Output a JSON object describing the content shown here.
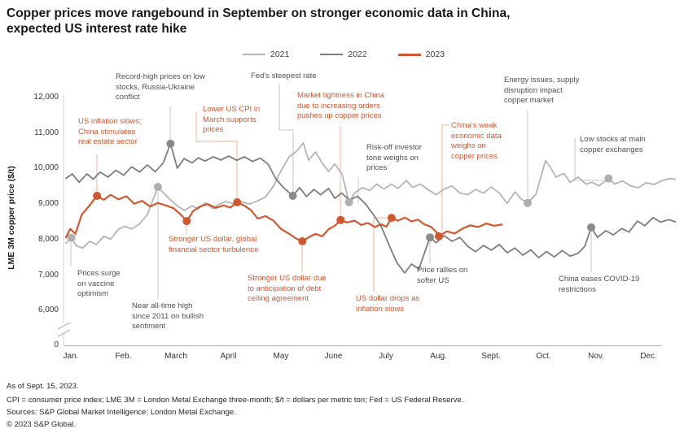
{
  "title": {
    "text": "Copper prices move rangebound in September on stronger economic data in China,\nexpected US interest rate hike"
  },
  "legend": [
    {
      "label": "2021",
      "color": "#b5b5b5"
    },
    {
      "label": "2022",
      "color": "#7d7d7d"
    },
    {
      "label": "2023",
      "color": "#d2572e"
    }
  ],
  "chart_data": {
    "type": "line",
    "title": "Copper prices move rangebound in September on stronger economic data in China, expected US interest rate hike",
    "ylabel": "LME 3M copper price ($/t)",
    "ylim": [
      6000,
      12000
    ],
    "y_axis_break_to_zero": true,
    "y_ticks": [
      "12,000",
      "11,000",
      "10,000",
      "9,000",
      "8,000",
      "7,000",
      "6,000",
      "0"
    ],
    "x_ticks": [
      "Jan.",
      "Feb.",
      "March",
      "April",
      "May",
      "June",
      "July",
      "Aug.",
      "Sept.",
      "Oct.",
      "Nov.",
      "Dec."
    ],
    "x_unit": "month index, 0 = start of January, 11 = start of December",
    "legend_position": "top",
    "grid": false,
    "series": [
      {
        "name": "2021",
        "color": "#b5b5b5",
        "width": 1.8,
        "points": [
          [
            0,
            7900
          ],
          [
            0.1,
            8050
          ],
          [
            0.2,
            7820
          ],
          [
            0.32,
            7760
          ],
          [
            0.45,
            7950
          ],
          [
            0.58,
            7860
          ],
          [
            0.72,
            8090
          ],
          [
            0.85,
            8010
          ],
          [
            1.0,
            8290
          ],
          [
            1.12,
            8370
          ],
          [
            1.25,
            8300
          ],
          [
            1.4,
            8440
          ],
          [
            1.55,
            8700
          ],
          [
            1.75,
            9480
          ],
          [
            1.88,
            9280
          ],
          [
            2.0,
            9100
          ],
          [
            2.12,
            8950
          ],
          [
            2.25,
            8820
          ],
          [
            2.4,
            8950
          ],
          [
            2.52,
            8860
          ],
          [
            2.65,
            9040
          ],
          [
            2.8,
            8870
          ],
          [
            2.92,
            9000
          ],
          [
            3.05,
            9070
          ],
          [
            3.2,
            9010
          ],
          [
            3.35,
            9060
          ],
          [
            3.5,
            9000
          ],
          [
            3.65,
            9090
          ],
          [
            3.8,
            9200
          ],
          [
            3.95,
            9500
          ],
          [
            4.1,
            9950
          ],
          [
            4.25,
            10330
          ],
          [
            4.4,
            10500
          ],
          [
            4.52,
            10720
          ],
          [
            4.62,
            10230
          ],
          [
            4.75,
            10470
          ],
          [
            4.88,
            10150
          ],
          [
            5.0,
            9920
          ],
          [
            5.12,
            10130
          ],
          [
            5.26,
            9830
          ],
          [
            5.39,
            9050
          ],
          [
            5.5,
            9320
          ],
          [
            5.65,
            9460
          ],
          [
            5.78,
            9380
          ],
          [
            5.92,
            9560
          ],
          [
            6.05,
            9420
          ],
          [
            6.2,
            9560
          ],
          [
            6.32,
            9440
          ],
          [
            6.48,
            9660
          ],
          [
            6.6,
            9470
          ],
          [
            6.75,
            9560
          ],
          [
            6.9,
            9400
          ],
          [
            7.05,
            9260
          ],
          [
            7.2,
            9420
          ],
          [
            7.35,
            9510
          ],
          [
            7.5,
            9310
          ],
          [
            7.65,
            9260
          ],
          [
            7.8,
            9410
          ],
          [
            7.95,
            9310
          ],
          [
            8.1,
            9480
          ],
          [
            8.25,
            9310
          ],
          [
            8.4,
            9020
          ],
          [
            8.55,
            9340
          ],
          [
            8.66,
            9150
          ],
          [
            8.79,
            9030
          ],
          [
            8.95,
            9280
          ],
          [
            9.13,
            10220
          ],
          [
            9.22,
            10040
          ],
          [
            9.33,
            9760
          ],
          [
            9.48,
            9860
          ],
          [
            9.6,
            9610
          ],
          [
            9.75,
            9760
          ],
          [
            9.9,
            9560
          ],
          [
            10.02,
            9610
          ],
          [
            10.15,
            9510
          ],
          [
            10.33,
            9720
          ],
          [
            10.45,
            9560
          ],
          [
            10.6,
            9650
          ],
          [
            10.75,
            9510
          ],
          [
            10.9,
            9460
          ],
          [
            11.05,
            9600
          ],
          [
            11.2,
            9550
          ],
          [
            11.35,
            9660
          ],
          [
            11.5,
            9720
          ],
          [
            11.6,
            9700
          ]
        ]
      },
      {
        "name": "2022",
        "color": "#7d7d7d",
        "width": 1.8,
        "points": [
          [
            0,
            9720
          ],
          [
            0.12,
            9850
          ],
          [
            0.25,
            9610
          ],
          [
            0.4,
            9850
          ],
          [
            0.52,
            9700
          ],
          [
            0.65,
            9900
          ],
          [
            0.8,
            9760
          ],
          [
            0.95,
            9950
          ],
          [
            1.1,
            9810
          ],
          [
            1.25,
            10050
          ],
          [
            1.4,
            9900
          ],
          [
            1.55,
            10100
          ],
          [
            1.7,
            9910
          ],
          [
            1.85,
            10150
          ],
          [
            1.99,
            10700
          ],
          [
            2.12,
            10010
          ],
          [
            2.25,
            10280
          ],
          [
            2.4,
            10160
          ],
          [
            2.52,
            10300
          ],
          [
            2.65,
            10210
          ],
          [
            2.8,
            10330
          ],
          [
            2.95,
            10240
          ],
          [
            3.1,
            10350
          ],
          [
            3.25,
            10230
          ],
          [
            3.4,
            10330
          ],
          [
            3.55,
            10200
          ],
          [
            3.7,
            10290
          ],
          [
            3.85,
            10120
          ],
          [
            4.0,
            9700
          ],
          [
            4.15,
            9450
          ],
          [
            4.32,
            9230
          ],
          [
            4.45,
            9460
          ],
          [
            4.58,
            9210
          ],
          [
            4.72,
            9410
          ],
          [
            4.85,
            9260
          ],
          [
            5.0,
            9440
          ],
          [
            5.12,
            9160
          ],
          [
            5.25,
            9310
          ],
          [
            5.4,
            9110
          ],
          [
            5.55,
            9220
          ],
          [
            5.7,
            9010
          ],
          [
            5.85,
            8710
          ],
          [
            6.0,
            8380
          ],
          [
            6.15,
            7850
          ],
          [
            6.3,
            7350
          ],
          [
            6.45,
            7060
          ],
          [
            6.58,
            7310
          ],
          [
            6.72,
            7170
          ],
          [
            6.93,
            8060
          ],
          [
            7.05,
            7910
          ],
          [
            7.2,
            8110
          ],
          [
            7.35,
            7950
          ],
          [
            7.5,
            8060
          ],
          [
            7.65,
            7810
          ],
          [
            7.8,
            7660
          ],
          [
            7.95,
            7830
          ],
          [
            8.1,
            7700
          ],
          [
            8.25,
            7860
          ],
          [
            8.4,
            7630
          ],
          [
            8.55,
            7760
          ],
          [
            8.7,
            7560
          ],
          [
            8.85,
            7710
          ],
          [
            9.0,
            7490
          ],
          [
            9.15,
            7660
          ],
          [
            9.3,
            7510
          ],
          [
            9.45,
            7690
          ],
          [
            9.6,
            7530
          ],
          [
            9.75,
            7610
          ],
          [
            9.88,
            7810
          ],
          [
            10.0,
            8340
          ],
          [
            10.12,
            8060
          ],
          [
            10.28,
            8250
          ],
          [
            10.42,
            8130
          ],
          [
            10.58,
            8310
          ],
          [
            10.72,
            8210
          ],
          [
            10.88,
            8520
          ],
          [
            11.02,
            8390
          ],
          [
            11.18,
            8620
          ],
          [
            11.32,
            8490
          ],
          [
            11.48,
            8560
          ],
          [
            11.6,
            8500
          ]
        ]
      },
      {
        "name": "2023",
        "color": "#d2572e",
        "width": 2.2,
        "points": [
          [
            0,
            8060
          ],
          [
            0.08,
            8300
          ],
          [
            0.18,
            8160
          ],
          [
            0.3,
            8700
          ],
          [
            0.45,
            8960
          ],
          [
            0.59,
            9230
          ],
          [
            0.72,
            9120
          ],
          [
            0.85,
            9260
          ],
          [
            1.0,
            9130
          ],
          [
            1.15,
            9220
          ],
          [
            1.3,
            9010
          ],
          [
            1.45,
            9090
          ],
          [
            1.6,
            8930
          ],
          [
            1.75,
            9030
          ],
          [
            1.9,
            8960
          ],
          [
            2.05,
            8880
          ],
          [
            2.18,
            8710
          ],
          [
            2.3,
            8520
          ],
          [
            2.42,
            8800
          ],
          [
            2.55,
            8930
          ],
          [
            2.7,
            9000
          ],
          [
            2.85,
            8890
          ],
          [
            3.0,
            8960
          ],
          [
            3.13,
            8900
          ],
          [
            3.26,
            9050
          ],
          [
            3.4,
            8950
          ],
          [
            3.52,
            8830
          ],
          [
            3.65,
            8590
          ],
          [
            3.8,
            8660
          ],
          [
            3.95,
            8530
          ],
          [
            4.1,
            8290
          ],
          [
            4.25,
            8160
          ],
          [
            4.38,
            8030
          ],
          [
            4.5,
            7950
          ],
          [
            4.62,
            8060
          ],
          [
            4.75,
            8160
          ],
          [
            4.88,
            8090
          ],
          [
            5.0,
            8290
          ],
          [
            5.12,
            8390
          ],
          [
            5.23,
            8550
          ],
          [
            5.35,
            8480
          ],
          [
            5.5,
            8530
          ],
          [
            5.62,
            8410
          ],
          [
            5.75,
            8470
          ],
          [
            5.88,
            8350
          ],
          [
            6.0,
            8430
          ],
          [
            6.1,
            8360
          ],
          [
            6.2,
            8610
          ],
          [
            6.32,
            8530
          ],
          [
            6.45,
            8620
          ],
          [
            6.58,
            8510
          ],
          [
            6.7,
            8560
          ],
          [
            6.82,
            8430
          ],
          [
            6.95,
            8360
          ],
          [
            7.05,
            8210
          ],
          [
            7.1,
            8090
          ],
          [
            7.25,
            8230
          ],
          [
            7.4,
            8170
          ],
          [
            7.55,
            8310
          ],
          [
            7.7,
            8400
          ],
          [
            7.85,
            8350
          ],
          [
            8.0,
            8450
          ],
          [
            8.15,
            8390
          ],
          [
            8.3,
            8420
          ]
        ]
      }
    ],
    "annotations": [
      {
        "id": "us-inflation-slows",
        "text": "US inflation slows;\nChina stimulates\nreal estate sector",
        "tone": "orange",
        "series": "2023",
        "month": 0.59,
        "value": 9230
      },
      {
        "id": "record-high",
        "text": "Record-high prices on low\nstocks, Russia-Ukraine\nconflict",
        "tone": "gray",
        "series": "2022",
        "month": 1.99,
        "value": 10700
      },
      {
        "id": "fed-steepest-rate",
        "text": "Fed's steepest rate",
        "tone": "gray",
        "series": "2022",
        "month": 4.32,
        "value": 9230
      },
      {
        "id": "lower-us-cpi",
        "text": "Lower US CPI in\nMarch supports\nprices",
        "tone": "orange",
        "series": "2023",
        "month": 3.26,
        "value": 9050
      },
      {
        "id": "market-tightness",
        "text": "Market tightness in China\ndue to increasing orders\npushes up copper prices",
        "tone": "orange",
        "series": "2023",
        "month": 5.23,
        "value": 8550
      },
      {
        "id": "risk-off",
        "text": "Risk-off investor\ntone weighs on\nprices",
        "tone": "gray",
        "series": "2021",
        "month": 5.39,
        "value": 9050
      },
      {
        "id": "china-weak-data",
        "text": "China's weak\neconomic data\nweighs on\ncopper prices",
        "tone": "orange",
        "series": "2023",
        "month": 7.1,
        "value": 8090
      },
      {
        "id": "energy-issues",
        "text": "Energy issues, supply\ndisruption impact\ncopper market",
        "tone": "gray",
        "series": "2021",
        "month": 8.79,
        "value": 9030
      },
      {
        "id": "low-stocks",
        "text": "Low stocks at main\ncopper exchanges",
        "tone": "gray",
        "series": "2021",
        "month": 10.33,
        "value": 9720
      },
      {
        "id": "vaccine-optimism",
        "text": "Prices surge\non vaccine\noptimism",
        "tone": "gray",
        "series": "2021",
        "month": 0.1,
        "value": 8050
      },
      {
        "id": "near-all-time-high",
        "text": "Near all-time high\nsince 2011 on bullish\nsentiment",
        "tone": "gray",
        "series": "2021",
        "month": 1.75,
        "value": 9480
      },
      {
        "id": "stronger-usd-turbulence",
        "text": "Stronger US dollar, global\nfinancial sector turbulence",
        "tone": "orange",
        "series": "2023",
        "month": 2.3,
        "value": 8520
      },
      {
        "id": "debt-ceiling",
        "text": "Stronger US dollar due\nto anticipation of debt\nceiling agreement",
        "tone": "orange",
        "series": "2023",
        "month": 4.5,
        "value": 7950
      },
      {
        "id": "usd-drops",
        "text": "US dollar drops as\ninflation slows",
        "tone": "orange",
        "series": "2023",
        "month": 6.2,
        "value": 8610
      },
      {
        "id": "price-rallies",
        "text": "Price rallies on\nsofter US",
        "tone": "gray",
        "series": "2022",
        "month": 6.93,
        "value": 8060
      },
      {
        "id": "china-eases-covid",
        "text": "China eases COVID-19\nrestrictions",
        "tone": "gray",
        "series": "2022",
        "month": 10.0,
        "value": 8340
      }
    ]
  },
  "footer": {
    "line1": "As of Sept. 15, 2023.",
    "line2": "CPI = consumer price index; LME 3M = London Metal Exchange three-month; $/t = dollars per metric ton; Fed = US Federal Reserve.",
    "line3": "Sources: S&P Global Market Intelligence; London Metal Exchange.",
    "line4": "© 2023 S&P Global."
  }
}
